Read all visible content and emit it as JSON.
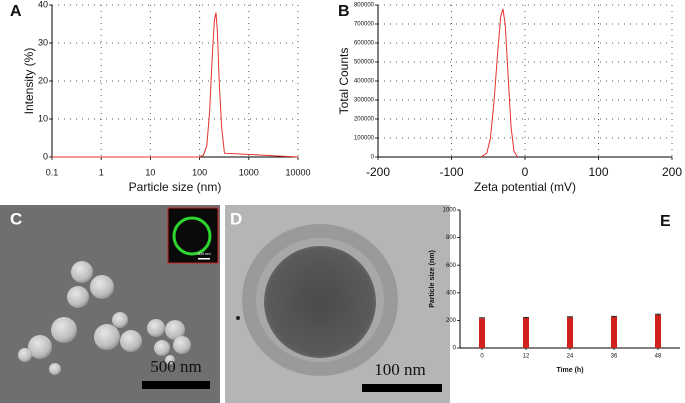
{
  "chart_data": [
    {
      "type": "line",
      "panel": "A",
      "xlabel": "Particle size (nm)",
      "ylabel": "Intensity (%)",
      "xscale": "log",
      "x": [
        0.1,
        100,
        120,
        140,
        160,
        180,
        200,
        215,
        230,
        250,
        280,
        320,
        10000
      ],
      "values": [
        0,
        0,
        0.5,
        3,
        12,
        26,
        36,
        38,
        33,
        20,
        8,
        1,
        0
      ],
      "color": "#e8302a",
      "xlim": [
        0.1,
        10000
      ],
      "xticks": [
        0.1,
        1,
        10,
        100,
        1000,
        10000
      ],
      "ylim": [
        0,
        40
      ],
      "yticks": [
        0,
        10,
        20,
        30,
        40
      ],
      "grid": true
    },
    {
      "type": "line",
      "panel": "B",
      "xlabel": "Zeta potential (mV)",
      "ylabel": "Total Counts",
      "x": [
        -60,
        -52,
        -47,
        -42,
        -37,
        -33,
        -30,
        -27,
        -23,
        -19,
        -15,
        -10
      ],
      "values": [
        0,
        20000,
        100000,
        300000,
        560000,
        740000,
        780000,
        700000,
        430000,
        160000,
        30000,
        0
      ],
      "color": "#e8302a",
      "xlim": [
        -200,
        200
      ],
      "xticks": [
        -200,
        -100,
        0,
        100,
        200
      ],
      "ylim": [
        0,
        800000
      ],
      "yticks": [
        0,
        100000,
        200000,
        300000,
        400000,
        500000,
        600000,
        700000,
        800000
      ],
      "grid": true
    },
    {
      "type": "bar",
      "panel": "E",
      "xlabel": "Time (h)",
      "ylabel": "Particle size (nm)",
      "categories": [
        "0",
        "12",
        "24",
        "36",
        "48"
      ],
      "values": [
        215,
        218,
        222,
        226,
        240
      ],
      "errors": [
        4,
        4,
        4,
        4,
        5
      ],
      "color": "#d4201c",
      "ylim": [
        0,
        1000
      ],
      "yticks": [
        0,
        200,
        400,
        600,
        800,
        1000
      ],
      "grid": false
    }
  ],
  "images": [
    {
      "panel": "C",
      "scale_bar": "500 nm",
      "inset_scale_bar": "500 nm"
    },
    {
      "panel": "D",
      "scale_bar": "100 nm"
    }
  ]
}
